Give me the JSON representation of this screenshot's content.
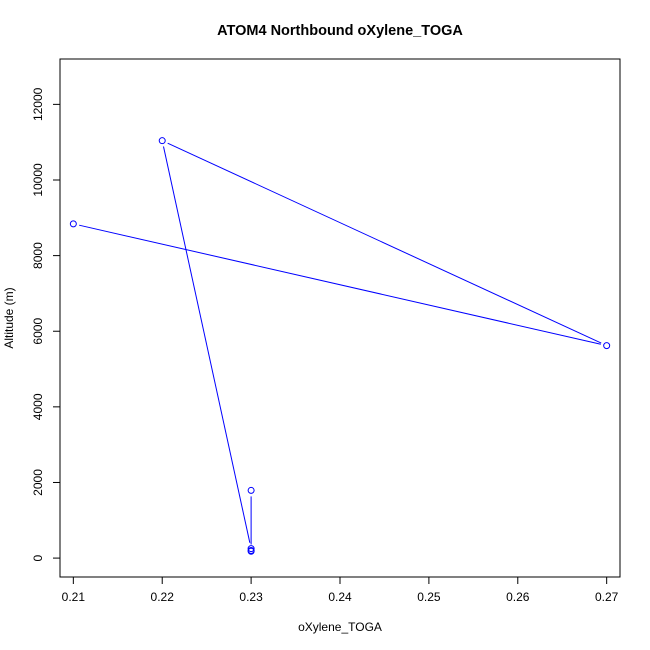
{
  "chart_data": {
    "type": "line",
    "title": "ATOM4 Northbound oXylene_TOGA",
    "xlabel": "oXylene_TOGA",
    "ylabel": "Altitude (m)",
    "xlim": [
      0.2085,
      0.2715
    ],
    "ylim": [
      -500,
      13200
    ],
    "x_ticks": [
      0.21,
      0.22,
      0.23,
      0.24,
      0.25,
      0.26,
      0.27
    ],
    "y_ticks": [
      0,
      2000,
      4000,
      6000,
      8000,
      10000,
      12000
    ],
    "grid": false,
    "legend": "none",
    "series": [
      {
        "color": "#0000ff",
        "marker": "open-circle",
        "x": [
          0.21,
          0.27,
          0.22,
          0.23,
          0.23,
          0.23,
          0.23
        ],
        "y": [
          8840,
          5620,
          11040,
          250,
          180,
          200,
          1790
        ]
      }
    ]
  }
}
